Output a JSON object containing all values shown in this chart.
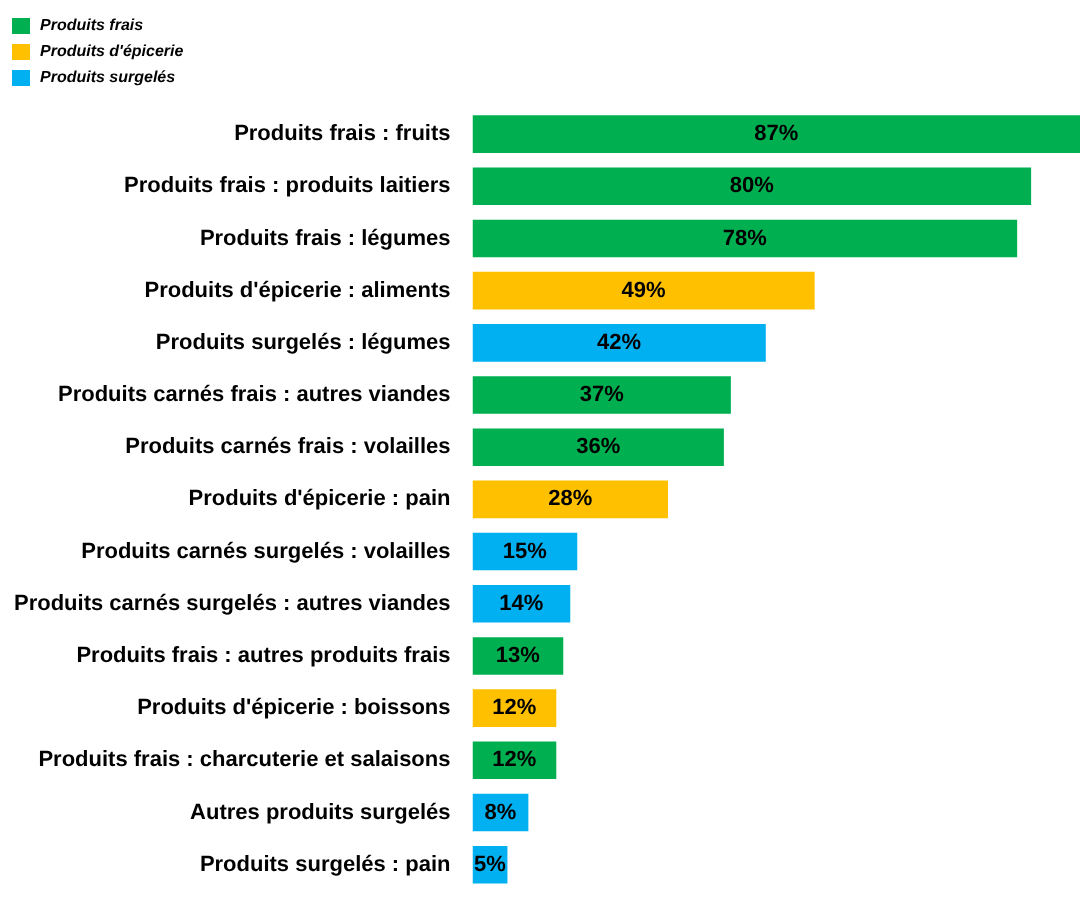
{
  "chart_data": {
    "type": "bar",
    "orientation": "horizontal",
    "stacked": true,
    "legend": "top left",
    "tick_labels": "y",
    "categories": [
      "Produits frais : fruits",
      "Produits frais : produits laitiers",
      "Produits frais : légumes",
      "Produits d'épicerie : aliments",
      "Produits surgelés : légumes",
      "Produits carnés frais : autres viandes",
      "Produits carnés frais : volailles",
      "Produits d'épicerie : pain",
      "Produits carnés surgelés : volailles",
      "Produits carnés surgelés : autres viandes",
      "Produits frais : autres produits frais",
      "Produits d'épicerie : boissons",
      "Produits frais : charcuterie et salaisons",
      "Autres produits surgelés",
      "Produits surgelés : pain"
    ],
    "series": [
      {
        "name": "Produits frais",
        "color": "#00b050",
        "values": [
          87,
          80,
          78,
          null,
          null,
          37,
          36,
          null,
          null,
          null,
          13,
          null,
          12,
          null,
          null
        ],
        "value_labels": [
          "87%",
          "80%",
          "78%",
          null,
          null,
          "37%",
          "36%",
          null,
          null,
          null,
          "13%",
          null,
          "12%",
          null,
          null
        ]
      },
      {
        "name": "Produits d'épicerie",
        "color": "#ffc000",
        "values": [
          null,
          null,
          null,
          49,
          null,
          null,
          null,
          28,
          null,
          null,
          null,
          12,
          null,
          null,
          null
        ],
        "value_labels": [
          null,
          null,
          null,
          "49%",
          null,
          null,
          null,
          "28%",
          null,
          null,
          null,
          "12%",
          null,
          null,
          null
        ]
      },
      {
        "name": "Produits surgelés",
        "color": "#00b0f0",
        "values": [
          null,
          null,
          null,
          null,
          42,
          null,
          null,
          null,
          15,
          14,
          null,
          null,
          null,
          8,
          5
        ],
        "value_labels": [
          null,
          null,
          null,
          null,
          "42%",
          null,
          null,
          null,
          "15%",
          "14%",
          null,
          null,
          null,
          "8%",
          "5%"
        ]
      }
    ]
  }
}
